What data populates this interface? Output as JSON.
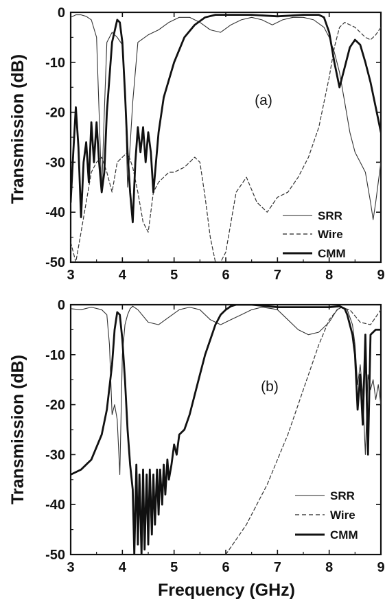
{
  "chart_data": [
    {
      "type": "line",
      "panel_label": "(a)",
      "xlabel": "",
      "ylabel": "Transmission (dB)",
      "xlim": [
        3,
        9
      ],
      "ylim": [
        -50,
        0
      ],
      "xticks": [
        "3",
        "4",
        "5",
        "6",
        "7",
        "8",
        "9"
      ],
      "yticks": [
        "0",
        "-10",
        "-20",
        "-30",
        "-40",
        "-50"
      ],
      "legend_position": "bottom-right",
      "series": [
        {
          "name": "SRR",
          "style": "thin",
          "x": [
            3.0,
            3.1,
            3.2,
            3.3,
            3.4,
            3.5,
            3.55,
            3.6,
            3.65,
            3.7,
            3.8,
            3.9,
            4.0,
            4.05,
            4.1,
            4.2,
            4.3,
            4.5,
            4.7,
            4.9,
            5.1,
            5.3,
            5.5,
            5.7,
            5.9,
            6.1,
            6.3,
            6.5,
            6.7,
            6.9,
            7.1,
            7.3,
            7.5,
            7.7,
            7.9,
            8.0,
            8.1,
            8.2,
            8.3,
            8.4,
            8.5,
            8.6,
            8.7,
            8.8,
            8.85,
            8.9,
            8.95,
            9.0
          ],
          "y": [
            -1.0,
            -0.5,
            -0.5,
            -0.8,
            -1.5,
            -5.0,
            -20.0,
            -36.0,
            -20.0,
            -6.0,
            -4.0,
            -5.0,
            -6.5,
            -15.0,
            -35.0,
            -18.0,
            -6.0,
            -4.5,
            -3.5,
            -2.0,
            -1.0,
            -1.0,
            -2.0,
            -3.5,
            -4.0,
            -2.5,
            -1.5,
            -1.0,
            -1.5,
            -2.5,
            -1.5,
            -1.0,
            -1.0,
            -1.5,
            -3.0,
            -5.0,
            -8.0,
            -12.0,
            -18.0,
            -24.0,
            -28.0,
            -30.0,
            -32.0,
            -38.0,
            -41.5,
            -38.0,
            -34.0,
            -30.0
          ]
        },
        {
          "name": "Wire",
          "style": "dashed",
          "x": [
            3.0,
            3.1,
            3.2,
            3.3,
            3.4,
            3.5,
            3.6,
            3.7,
            3.8,
            3.9,
            4.0,
            4.1,
            4.2,
            4.3,
            4.4,
            4.5,
            4.6,
            4.7,
            4.8,
            4.9,
            5.0,
            5.2,
            5.4,
            5.5,
            5.6,
            5.7,
            5.8,
            5.9,
            6.0,
            6.2,
            6.4,
            6.6,
            6.8,
            7.0,
            7.2,
            7.4,
            7.6,
            7.8,
            7.9,
            8.0,
            8.1,
            8.2,
            8.3,
            8.4,
            8.5,
            8.6,
            8.7,
            8.8,
            8.9,
            9.0
          ],
          "y": [
            -46.0,
            -50.0,
            -44.0,
            -38.0,
            -32.0,
            -30.0,
            -29.0,
            -32.0,
            -36.0,
            -30.0,
            -29.0,
            -28.0,
            -31.0,
            -36.0,
            -42.0,
            -44.0,
            -36.0,
            -34.0,
            -33.0,
            -32.0,
            -32.0,
            -31.0,
            -29.0,
            -30.0,
            -37.0,
            -45.0,
            -50.0,
            -50.0,
            -48.0,
            -36.0,
            -33.0,
            -38.0,
            -40.0,
            -37.0,
            -36.0,
            -33.0,
            -29.0,
            -23.0,
            -18.0,
            -13.0,
            -7.0,
            -3.0,
            -2.0,
            -2.5,
            -3.0,
            -4.0,
            -5.0,
            -5.5,
            -4.5,
            -3.0
          ]
        },
        {
          "name": "CMM",
          "style": "thick",
          "x": [
            3.0,
            3.05,
            3.1,
            3.15,
            3.2,
            3.25,
            3.3,
            3.35,
            3.4,
            3.45,
            3.5,
            3.55,
            3.6,
            3.65,
            3.7,
            3.8,
            3.9,
            3.95,
            4.0,
            4.05,
            4.1,
            4.15,
            4.2,
            4.25,
            4.3,
            4.35,
            4.4,
            4.45,
            4.5,
            4.55,
            4.6,
            4.65,
            4.7,
            4.8,
            5.0,
            5.2,
            5.4,
            5.6,
            5.8,
            6.0,
            6.5,
            7.0,
            7.5,
            7.8,
            7.9,
            8.0,
            8.1,
            8.2,
            8.3,
            8.4,
            8.5,
            8.6,
            8.7,
            8.8,
            8.9,
            9.0
          ],
          "y": [
            -38.0,
            -28.0,
            -19.0,
            -27.0,
            -41.0,
            -30.0,
            -26.0,
            -34.0,
            -22.0,
            -30.0,
            -22.0,
            -30.0,
            -36.0,
            -32.0,
            -20.0,
            -6.0,
            -1.5,
            -2.0,
            -6.0,
            -16.0,
            -28.0,
            -36.0,
            -42.0,
            -30.0,
            -23.0,
            -28.0,
            -23.0,
            -30.0,
            -24.0,
            -28.0,
            -36.0,
            -30.0,
            -24.0,
            -17.0,
            -10.0,
            -5.0,
            -2.5,
            -1.0,
            -0.5,
            -0.5,
            -0.5,
            -0.8,
            -0.5,
            -0.5,
            -1.0,
            -4.0,
            -10.0,
            -15.0,
            -11.0,
            -7.0,
            -5.5,
            -6.5,
            -10.0,
            -14.0,
            -19.0,
            -24.0
          ]
        }
      ]
    },
    {
      "type": "line",
      "panel_label": "(b)",
      "xlabel": "Frequency (GHz)",
      "ylabel": "Transmission (dB)",
      "xlim": [
        3,
        9
      ],
      "ylim": [
        -50,
        0
      ],
      "xticks": [
        "3",
        "4",
        "5",
        "6",
        "7",
        "8",
        "9"
      ],
      "yticks": [
        "0",
        "-10",
        "-20",
        "-30",
        "-40",
        "-50"
      ],
      "legend_position": "bottom-right",
      "series": [
        {
          "name": "SRR",
          "style": "thin",
          "x": [
            3.0,
            3.2,
            3.4,
            3.6,
            3.7,
            3.75,
            3.8,
            3.85,
            3.9,
            3.95,
            4.0,
            4.05,
            4.1,
            4.15,
            4.2,
            4.3,
            4.5,
            4.7,
            4.9,
            5.1,
            5.3,
            5.5,
            5.7,
            5.9,
            6.1,
            6.3,
            6.5,
            6.7,
            6.9,
            7.0,
            7.2,
            7.4,
            7.6,
            7.8,
            8.0,
            8.15,
            8.25,
            8.35,
            8.45,
            8.5,
            8.55,
            8.6,
            8.65,
            8.7,
            8.75,
            8.8,
            8.85,
            8.9,
            8.95,
            9.0
          ],
          "y": [
            -0.8,
            -1.0,
            -0.5,
            -1.0,
            -2.0,
            -8.0,
            -22.0,
            -20.0,
            -23.0,
            -34.0,
            -10.0,
            -4.0,
            -2.0,
            -0.8,
            -0.3,
            -1.0,
            -3.5,
            -4.0,
            -2.5,
            -1.0,
            -0.5,
            -1.0,
            -3.0,
            -4.0,
            -3.0,
            -2.0,
            -1.0,
            -0.5,
            -0.8,
            -1.0,
            -3.0,
            -5.0,
            -6.0,
            -5.5,
            -3.5,
            -1.0,
            -0.5,
            -1.0,
            -4.0,
            -8.0,
            -16.0,
            -12.0,
            -18.0,
            -30.0,
            -14.0,
            -17.0,
            -15.0,
            -19.0,
            -16.0,
            -20.0
          ]
        },
        {
          "name": "Wire",
          "style": "dashed",
          "x": [
            6.0,
            6.2,
            6.4,
            6.6,
            6.8,
            7.0,
            7.2,
            7.4,
            7.6,
            7.8,
            8.0,
            8.2,
            8.4,
            8.6,
            8.8,
            9.0
          ],
          "y": [
            -50.0,
            -47.0,
            -44.0,
            -40.0,
            -36.0,
            -31.0,
            -26.0,
            -20.0,
            -14.0,
            -8.0,
            -3.0,
            -0.5,
            -1.0,
            -3.5,
            -4.0,
            -1.0
          ]
        },
        {
          "name": "CMM",
          "style": "thick",
          "x": [
            3.0,
            3.2,
            3.4,
            3.6,
            3.7,
            3.8,
            3.85,
            3.9,
            3.95,
            4.0,
            4.05,
            4.1,
            4.15,
            4.2,
            4.23,
            4.27,
            4.3,
            4.33,
            4.37,
            4.4,
            4.43,
            4.47,
            4.5,
            4.53,
            4.57,
            4.6,
            4.63,
            4.67,
            4.7,
            4.73,
            4.77,
            4.8,
            4.83,
            4.87,
            4.9,
            4.95,
            5.0,
            5.05,
            5.1,
            5.2,
            5.3,
            5.4,
            5.5,
            5.6,
            5.7,
            5.8,
            5.9,
            6.0,
            6.1,
            6.2,
            6.5,
            7.0,
            7.5,
            8.0,
            8.2,
            8.3,
            8.35,
            8.4,
            8.45,
            8.5,
            8.55,
            8.6,
            8.65,
            8.7,
            8.75,
            8.8,
            8.9,
            9.0
          ],
          "y": [
            -34.0,
            -33.0,
            -31.0,
            -26.0,
            -21.0,
            -12.0,
            -5.0,
            -1.5,
            -2.0,
            -7.0,
            -15.0,
            -25.0,
            -32.0,
            -37.0,
            -50.0,
            -32.0,
            -48.0,
            -34.0,
            -50.0,
            -33.0,
            -49.0,
            -34.0,
            -48.0,
            -33.0,
            -46.0,
            -34.0,
            -44.0,
            -33.0,
            -42.0,
            -33.0,
            -40.0,
            -32.0,
            -38.0,
            -31.0,
            -35.0,
            -32.0,
            -28.0,
            -30.0,
            -26.0,
            -25.0,
            -22.0,
            -18.0,
            -14.0,
            -10.0,
            -7.0,
            -4.0,
            -2.0,
            -1.0,
            -0.3,
            0.0,
            0.0,
            -0.5,
            -0.5,
            -0.5,
            -0.3,
            -0.8,
            -2.0,
            -4.0,
            -6.0,
            -10.0,
            -21.0,
            -14.0,
            -24.0,
            -6.0,
            -30.0,
            -6.0,
            -5.0,
            -5.0
          ]
        }
      ]
    }
  ]
}
